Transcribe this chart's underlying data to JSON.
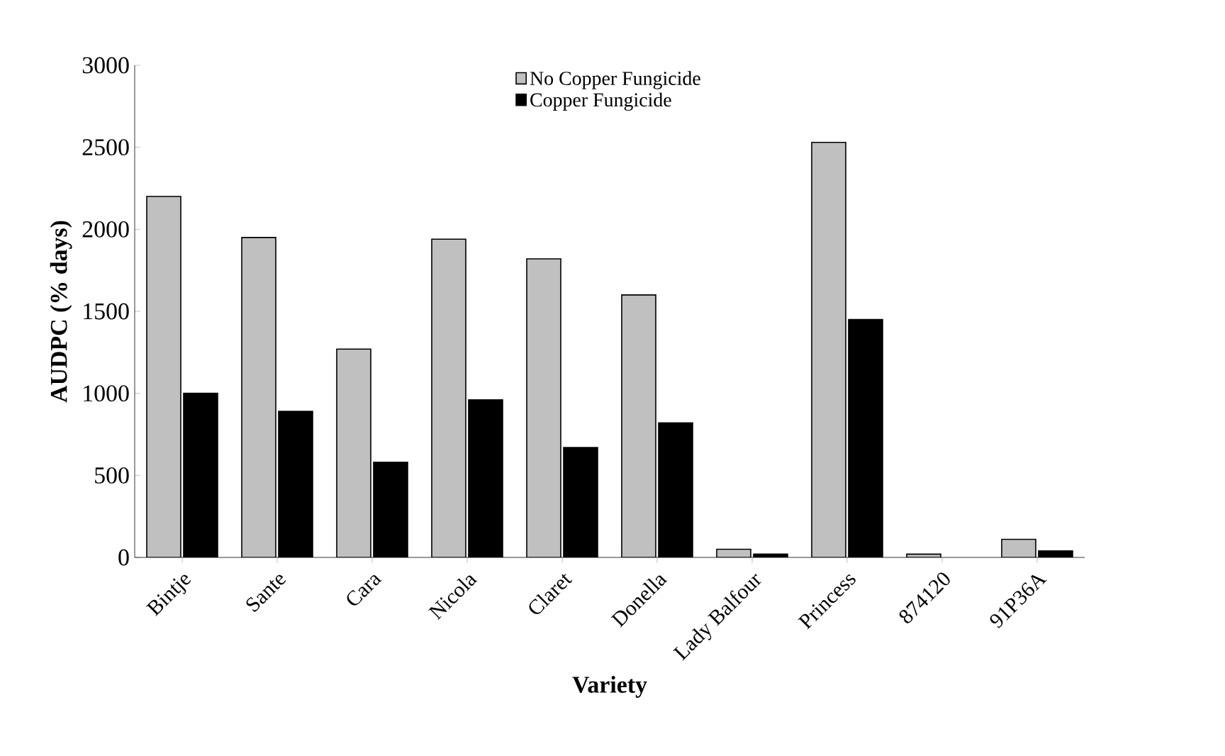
{
  "chart_data": {
    "type": "bar",
    "xlabel": "Variety",
    "ylabel": "AUDPC (% days)",
    "categories": [
      "Bintje",
      "Sante",
      "Cara",
      "Nicola",
      "Claret",
      "Donella",
      "Lady Balfour",
      "Princess",
      "874120",
      "91P36A"
    ],
    "series": [
      {
        "name": "No Copper Fungicide",
        "color": "#c0c0c0",
        "values": [
          2200,
          1950,
          1270,
          1940,
          1820,
          1600,
          50,
          2530,
          20,
          110
        ]
      },
      {
        "name": "Copper Fungicide",
        "color": "#000000",
        "values": [
          1000,
          890,
          580,
          960,
          670,
          820,
          20,
          1450,
          null,
          40
        ]
      }
    ],
    "ylim": [
      0,
      3000
    ],
    "yticks": [
      0,
      500,
      1000,
      1500,
      2000,
      2500,
      3000
    ],
    "grid": false,
    "legend": "top"
  }
}
